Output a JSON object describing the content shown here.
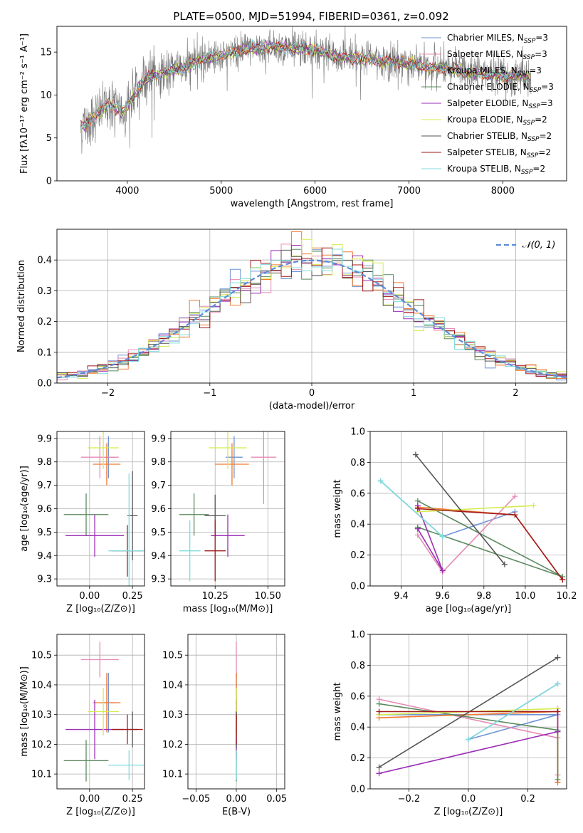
{
  "figure": {
    "title": "PLATE=0500, MJD=51994, FIBERID=0361, z=0.092"
  },
  "models": [
    {
      "name": "Chabrier MILES",
      "nssp": "3",
      "color": "#6f93d6"
    },
    {
      "name": "Salpeter MILES",
      "nssp": "3",
      "color": "#e58bb4"
    },
    {
      "name": "Kroupa MILES",
      "nssp": "3",
      "color": "#f07a2e"
    },
    {
      "name": "Chabrier ELODIE",
      "nssp": "3",
      "color": "#5a8a5e"
    },
    {
      "name": "Salpeter ELODIE",
      "nssp": "3",
      "color": "#9b2fb5"
    },
    {
      "name": "Kroupa ELODIE",
      "nssp": "2",
      "color": "#d4ec4d"
    },
    {
      "name": "Chabrier STELIB",
      "nssp": "2",
      "color": "#555555"
    },
    {
      "name": "Salpeter STELIB",
      "nssp": "2",
      "color": "#a11a1a"
    },
    {
      "name": "Kroupa STELIB",
      "nssp": "2",
      "color": "#7fdcdc"
    }
  ],
  "legend_nssp_prefix": "N",
  "legend_nssp_sub": "SSP",
  "chart_data": [
    {
      "id": "spectrum",
      "type": "line",
      "title": "PLATE=0500, MJD=51994, FIBERID=0361, z=0.092",
      "xlabel": "wavelength [Angstrom, rest frame]",
      "ylabel": "Flux [fλ10⁻¹⁷ erg cm⁻² s⁻¹ A⁻¹]",
      "xlim": [
        3250,
        8680
      ],
      "ylim": [
        0,
        18
      ],
      "xticks": [
        4000,
        5000,
        6000,
        7000,
        8000
      ],
      "yticks": [
        0,
        5,
        10,
        15
      ],
      "grid": false,
      "legend_position": "right",
      "continuum_nodes": [
        [
          3500,
          6.2
        ],
        [
          3650,
          7.5
        ],
        [
          3800,
          9
        ],
        [
          3950,
          8
        ],
        [
          4050,
          9.6
        ],
        [
          4200,
          12
        ],
        [
          4400,
          12.6
        ],
        [
          4600,
          13.2
        ],
        [
          4800,
          14.2
        ],
        [
          5000,
          14.6
        ],
        [
          5200,
          15.2
        ],
        [
          5400,
          15.5
        ],
        [
          5600,
          15.6
        ],
        [
          5800,
          15.4
        ],
        [
          6000,
          15.3
        ],
        [
          6200,
          14.5
        ],
        [
          6400,
          14.3
        ],
        [
          6600,
          14.1
        ],
        [
          6800,
          13.9
        ],
        [
          7000,
          13.6
        ],
        [
          7200,
          13.3
        ],
        [
          7400,
          13
        ],
        [
          7600,
          12.7
        ],
        [
          7800,
          12.4
        ],
        [
          8000,
          12.2
        ],
        [
          8200,
          12.3
        ],
        [
          8300,
          11.8
        ]
      ]
    },
    {
      "id": "residual_hist",
      "type": "histogram",
      "xlabel": "(data-model)/error",
      "ylabel": "Normed distribution",
      "xlim": [
        -2.5,
        2.5
      ],
      "ylim": [
        0,
        0.5
      ],
      "xticks": [
        -2,
        -1,
        0,
        1,
        2
      ],
      "yticks": [
        0.0,
        0.1,
        0.2,
        0.3,
        0.4
      ],
      "grid": true,
      "bins": 50,
      "reference_curve": {
        "name": "N(0,1)",
        "label_math": "𝒩(0, 1)",
        "mean": 0,
        "sigma": 1,
        "color": "#5b8bd9"
      },
      "legend_position": "top-right"
    },
    {
      "id": "Z_vs_age",
      "type": "errorbar",
      "xlabel": "Z [log₁₀(Z/Z⊙)]",
      "ylabel": "age  [log₁₀(age/yr)]",
      "xlim": [
        -0.19,
        0.32
      ],
      "ylim": [
        9.27,
        9.93
      ],
      "xticks": [
        0.0,
        0.25
      ],
      "yticks": [
        9.3,
        9.4,
        9.5,
        9.6,
        9.7,
        9.8,
        9.9
      ],
      "grid": true,
      "points": [
        {
          "model": "Chabrier MILES",
          "x": 0.11,
          "y": 9.82,
          "xerr": 0.04,
          "yerr": 0.09
        },
        {
          "model": "Salpeter MILES",
          "x": 0.06,
          "y": 9.82,
          "xerr": 0.11,
          "yerr": 0.09
        },
        {
          "model": "Kroupa MILES",
          "x": 0.1,
          "y": 9.79,
          "xerr": 0.08,
          "yerr": 0.09
        },
        {
          "model": "Chabrier ELODIE",
          "x": -0.02,
          "y": 9.575,
          "xerr": 0.13,
          "yerr": 0.09
        },
        {
          "model": "Salpeter ELODIE",
          "x": 0.03,
          "y": 9.485,
          "xerr": 0.17,
          "yerr": 0.09
        },
        {
          "model": "Kroupa ELODIE",
          "x": 0.08,
          "y": 9.86,
          "xerr": 0.09,
          "yerr": 0.09
        },
        {
          "model": "Chabrier STELIB",
          "x": 0.25,
          "y": 9.57,
          "xerr": 0.03,
          "yerr": 0.19
        },
        {
          "model": "Salpeter STELIB",
          "x": 0.22,
          "y": 9.42,
          "xerr": 0.09,
          "yerr": 0.11
        },
        {
          "model": "Kroupa STELIB",
          "x": 0.23,
          "y": 9.42,
          "xerr": 0.12,
          "yerr": 0.33
        }
      ]
    },
    {
      "id": "mass_vs_age",
      "type": "errorbar",
      "xlabel": "mass [log₁₀(M/M⊙)]",
      "ylabel": "",
      "xlim": [
        10.04,
        10.58
      ],
      "ylim": [
        9.27,
        9.93
      ],
      "xticks": [
        10.25,
        10.5
      ],
      "yticks": [
        9.3,
        9.4,
        9.5,
        9.6,
        9.7,
        9.8,
        9.9
      ],
      "grid": true,
      "points": [
        {
          "model": "Chabrier MILES",
          "x": 10.34,
          "y": 9.82,
          "xerr": 0.04,
          "yerr": 0.09
        },
        {
          "model": "Salpeter MILES",
          "x": 10.48,
          "y": 9.82,
          "xerr": 0.06,
          "yerr": 0.2
        },
        {
          "model": "Kroupa MILES",
          "x": 10.33,
          "y": 9.79,
          "xerr": 0.08,
          "yerr": 0.09
        },
        {
          "model": "Chabrier ELODIE",
          "x": 10.15,
          "y": 9.575,
          "xerr": 0.07,
          "yerr": 0.09
        },
        {
          "model": "Salpeter ELODIE",
          "x": 10.31,
          "y": 9.485,
          "xerr": 0.08,
          "yerr": 0.09
        },
        {
          "model": "Kroupa ELODIE",
          "x": 10.31,
          "y": 9.86,
          "xerr": 0.09,
          "yerr": 0.09
        },
        {
          "model": "Chabrier STELIB",
          "x": 10.25,
          "y": 9.57,
          "xerr": 0.05,
          "yerr": 0.09
        },
        {
          "model": "Salpeter STELIB",
          "x": 10.25,
          "y": 9.42,
          "xerr": 0.05,
          "yerr": 0.13
        },
        {
          "model": "Kroupa STELIB",
          "x": 10.13,
          "y": 9.42,
          "xerr": 0.05,
          "yerr": 0.13
        }
      ]
    },
    {
      "id": "age_vs_weight",
      "type": "line",
      "xlabel": "age  [log₁₀(age/yr)]",
      "ylabel": "mass weight",
      "xlim": [
        9.25,
        10.2
      ],
      "ylim": [
        0,
        1
      ],
      "xticks": [
        9.4,
        9.6,
        9.8,
        10.0,
        10.2
      ],
      "yticks": [
        0.0,
        0.2,
        0.4,
        0.6,
        0.8,
        1.0
      ],
      "grid": true,
      "series": [
        {
          "model": "Chabrier MILES",
          "points": [
            [
              9.3,
              0.68
            ],
            [
              9.6,
              0.32
            ],
            [
              9.95,
              0.48
            ]
          ]
        },
        {
          "model": "Salpeter MILES",
          "points": [
            [
              9.48,
              0.33
            ],
            [
              9.6,
              0.09
            ],
            [
              9.95,
              0.58
            ]
          ]
        },
        {
          "model": "Kroupa MILES",
          "points": [
            [
              9.48,
              0.51
            ],
            [
              9.95,
              0.46
            ],
            [
              10.18,
              0.04
            ]
          ]
        },
        {
          "model": "Chabrier ELODIE",
          "points": [
            [
              9.48,
              0.38
            ],
            [
              10.18,
              0.06
            ],
            [
              9.48,
              0.55
            ]
          ]
        },
        {
          "model": "Salpeter ELODIE",
          "points": [
            [
              9.48,
              0.37
            ],
            [
              9.6,
              0.1
            ],
            [
              9.48,
              0.52
            ]
          ]
        },
        {
          "model": "Kroupa ELODIE",
          "points": [
            [
              9.48,
              0.48
            ],
            [
              10.04,
              0.52
            ]
          ]
        },
        {
          "model": "Chabrier STELIB",
          "points": [
            [
              9.47,
              0.85
            ],
            [
              9.9,
              0.14
            ]
          ]
        },
        {
          "model": "Salpeter STELIB",
          "points": [
            [
              9.48,
              0.5
            ],
            [
              9.95,
              0.46
            ],
            [
              10.18,
              0.04
            ]
          ]
        },
        {
          "model": "Kroupa STELIB",
          "points": [
            [
              9.3,
              0.68
            ],
            [
              9.6,
              0.32
            ]
          ]
        }
      ]
    },
    {
      "id": "Z_vs_mass",
      "type": "errorbar",
      "xlabel": "Z [log₁₀(Z/Z⊙)]",
      "ylabel": "mass [log₁₀(M/M⊙)]",
      "xlim": [
        -0.19,
        0.32
      ],
      "ylim": [
        10.05,
        10.57
      ],
      "xticks": [
        0.0,
        0.25
      ],
      "yticks": [
        10.1,
        10.2,
        10.3,
        10.4,
        10.5
      ],
      "grid": true,
      "points": [
        {
          "model": "Chabrier MILES",
          "x": 0.11,
          "y": 10.34,
          "xerr": 0.04,
          "yerr": 0.1
        },
        {
          "model": "Salpeter MILES",
          "x": 0.06,
          "y": 10.485,
          "xerr": 0.11,
          "yerr": 0.06
        },
        {
          "model": "Kroupa MILES",
          "x": 0.1,
          "y": 10.34,
          "xerr": 0.08,
          "yerr": 0.1
        },
        {
          "model": "Chabrier ELODIE",
          "x": -0.02,
          "y": 10.145,
          "xerr": 0.13,
          "yerr": 0.07
        },
        {
          "model": "Salpeter ELODIE",
          "x": 0.03,
          "y": 10.25,
          "xerr": 0.17,
          "yerr": 0.1
        },
        {
          "model": "Kroupa ELODIE",
          "x": 0.08,
          "y": 10.31,
          "xerr": 0.09,
          "yerr": 0.08
        },
        {
          "model": "Chabrier STELIB",
          "x": 0.25,
          "y": 10.25,
          "xerr": 0.03,
          "yerr": 0.06
        },
        {
          "model": "Salpeter STELIB",
          "x": 0.22,
          "y": 10.25,
          "xerr": 0.09,
          "yerr": 0.05
        },
        {
          "model": "Kroupa STELIB",
          "x": 0.23,
          "y": 10.13,
          "xerr": 0.12,
          "yerr": 0.05
        }
      ]
    },
    {
      "id": "ebv_vs_mass",
      "type": "errorbar",
      "xlabel": "E(B-V)",
      "ylabel": "",
      "xlim": [
        -0.06,
        0.06
      ],
      "ylim": [
        10.05,
        10.57
      ],
      "xticks": [
        -0.05,
        0.0,
        0.05
      ],
      "yticks": [
        10.1,
        10.2,
        10.3,
        10.4,
        10.5
      ],
      "grid": true,
      "points": [
        {
          "model": "Chabrier MILES",
          "x": 0,
          "y": 10.34,
          "xerr": 0,
          "yerr": 0.1
        },
        {
          "model": "Salpeter MILES",
          "x": 0,
          "y": 10.485,
          "xerr": 0,
          "yerr": 0.06
        },
        {
          "model": "Kroupa MILES",
          "x": 0,
          "y": 10.34,
          "xerr": 0,
          "yerr": 0.1
        },
        {
          "model": "Chabrier ELODIE",
          "x": 0,
          "y": 10.145,
          "xerr": 0,
          "yerr": 0.07
        },
        {
          "model": "Salpeter ELODIE",
          "x": 0,
          "y": 10.25,
          "xerr": 0,
          "yerr": 0.1
        },
        {
          "model": "Kroupa ELODIE",
          "x": 0,
          "y": 10.31,
          "xerr": 0,
          "yerr": 0.08
        },
        {
          "model": "Chabrier STELIB",
          "x": 0,
          "y": 10.25,
          "xerr": 0,
          "yerr": 0.06
        },
        {
          "model": "Salpeter STELIB",
          "x": 0,
          "y": 10.25,
          "xerr": 0,
          "yerr": 0.05
        },
        {
          "model": "Kroupa STELIB",
          "x": 0,
          "y": 10.13,
          "xerr": 0,
          "yerr": 0.05
        }
      ]
    },
    {
      "id": "Z_vs_weight",
      "type": "line",
      "xlabel": "Z [log₁₀(Z/Z⊙)]",
      "ylabel": "mass weight",
      "xlim": [
        -0.33,
        0.33
      ],
      "ylim": [
        0,
        1
      ],
      "xticks": [
        -0.2,
        0.0,
        0.2
      ],
      "yticks": [
        0.0,
        0.2,
        0.4,
        0.6,
        0.8,
        1.0
      ],
      "grid": true,
      "series": [
        {
          "model": "Chabrier MILES",
          "points": [
            [
              -0.3,
              0.48
            ],
            [
              0.3,
              0.48
            ],
            [
              0.0,
              0.32
            ],
            [
              0.3,
              0.68
            ]
          ]
        },
        {
          "model": "Salpeter MILES",
          "points": [
            [
              -0.3,
              0.58
            ],
            [
              0.3,
              0.33
            ],
            [
              0.3,
              0.09
            ]
          ]
        },
        {
          "model": "Kroupa MILES",
          "points": [
            [
              -0.3,
              0.46
            ],
            [
              0.3,
              0.5
            ],
            [
              0.3,
              0.04
            ]
          ]
        },
        {
          "model": "Chabrier ELODIE",
          "points": [
            [
              -0.3,
              0.55
            ],
            [
              0.3,
              0.38
            ],
            [
              0.3,
              0.06
            ]
          ]
        },
        {
          "model": "Salpeter ELODIE",
          "points": [
            [
              -0.3,
              0.1
            ],
            [
              0.3,
              0.37
            ],
            [
              0.3,
              0.52
            ]
          ]
        },
        {
          "model": "Kroupa ELODIE",
          "points": [
            [
              -0.3,
              0.48
            ],
            [
              0.3,
              0.52
            ]
          ]
        },
        {
          "model": "Chabrier STELIB",
          "points": [
            [
              -0.3,
              0.14
            ],
            [
              0.3,
              0.85
            ]
          ]
        },
        {
          "model": "Salpeter STELIB",
          "points": [
            [
              -0.3,
              0.5
            ],
            [
              0.3,
              0.5
            ]
          ]
        },
        {
          "model": "Kroupa STELIB",
          "points": [
            [
              0.0,
              0.32
            ],
            [
              0.3,
              0.68
            ]
          ]
        }
      ]
    }
  ]
}
